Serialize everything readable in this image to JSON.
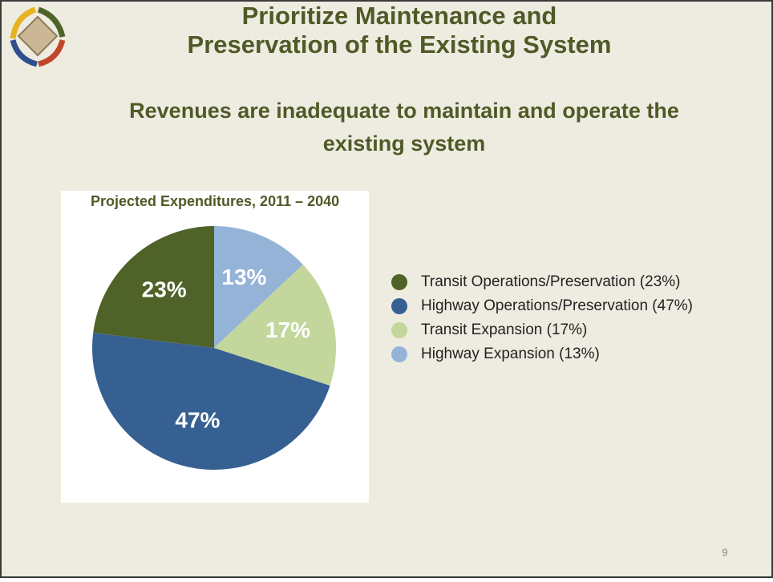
{
  "slide": {
    "title_lines": [
      "Prioritize Maintenance and",
      "Preservation of the Existing System"
    ],
    "subtitle_lines": [
      "Revenues are inadequate to maintain and operate the",
      "existing system"
    ],
    "page_number": 9
  },
  "chart_data": {
    "type": "pie",
    "title": "Projected Expenditures, 2011 – 2040",
    "categories": [
      "Transit Operations/Preservation (23%)",
      "Highway Operations/Preservation (47%)",
      "Transit Expansion (17%)",
      "Highway Expansion (13%)"
    ],
    "values": [
      23,
      47,
      17,
      13
    ],
    "value_labels": [
      "23%",
      "47%",
      "17%",
      "13%"
    ],
    "colors": [
      "#4f6228",
      "#376092",
      "#c3d69b",
      "#95b3d7"
    ],
    "legend": "right"
  }
}
